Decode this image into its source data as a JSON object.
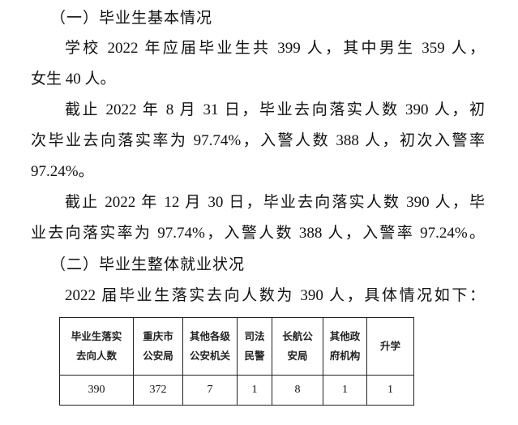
{
  "sections": [
    {
      "heading": "（一）毕业生基本情况"
    },
    {
      "heading": "（二）毕业生整体就业状况"
    }
  ],
  "lines": [
    "学校 2022 年应届毕业生共 399 人，其中男生 359 人，",
    "女生 40 人。",
    "截止 2022 年 8 月 31 日，毕业去向落实人数 390 人，初",
    "次毕业去向落实率为 97.74%，入警人数 388 人，初次入警率",
    "97.24%。",
    "截止 2022 年 12 月 30 日，毕业去向落实人数 390 人，毕",
    "业去向落实率为 97.74%，入警人数 388 人，入警率 97.24%。",
    "2022 届毕业生落实去向人数为 390 人，具体情况如下："
  ],
  "table": {
    "headers": [
      "毕业生落实\n去向人数",
      "重庆市\n公安局",
      "其他各级\n公安机关",
      "司法\n民警",
      "长航公\n安局",
      "其他政\n府机构",
      "升学"
    ],
    "values": [
      "390",
      "372",
      "7",
      "1",
      "8",
      "1",
      "1"
    ]
  }
}
